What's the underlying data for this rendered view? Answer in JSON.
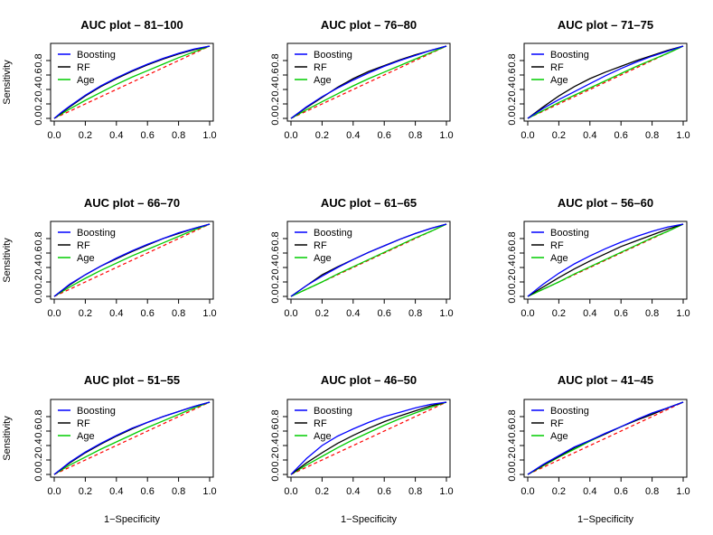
{
  "colors": {
    "boosting": "#0000ff",
    "rf": "#000000",
    "age": "#00cc00",
    "diagonal": "#ff0000"
  },
  "chart_data": [
    {
      "type": "line",
      "title": "AUC plot – 81–100",
      "xlabel": "",
      "ylabel": "Sensitivity",
      "xlim": [
        0,
        1
      ],
      "ylim": [
        0,
        1
      ],
      "xticks": [
        "0.0",
        "0.2",
        "0.4",
        "0.6",
        "0.8",
        "1.0"
      ],
      "yticks": [
        "0.0",
        "0.2",
        "0.4",
        "0.6",
        "0.8"
      ],
      "legend": "top-left",
      "diagonal": {
        "x": [
          0,
          1
        ],
        "y": [
          0,
          1
        ],
        "style": "dashed"
      },
      "series": [
        {
          "name": "Boosting",
          "x": [
            0,
            0.05,
            0.1,
            0.2,
            0.3,
            0.4,
            0.5,
            0.6,
            0.7,
            0.8,
            0.9,
            1.0
          ],
          "y": [
            0,
            0.09,
            0.17,
            0.32,
            0.45,
            0.56,
            0.66,
            0.75,
            0.83,
            0.9,
            0.96,
            1.0
          ]
        },
        {
          "name": "RF",
          "x": [
            0,
            0.05,
            0.1,
            0.2,
            0.3,
            0.4,
            0.5,
            0.6,
            0.7,
            0.8,
            0.9,
            1.0
          ],
          "y": [
            0,
            0.08,
            0.16,
            0.31,
            0.44,
            0.55,
            0.65,
            0.74,
            0.82,
            0.89,
            0.95,
            1.0
          ]
        },
        {
          "name": "Age",
          "x": [
            0,
            0.1,
            0.2,
            0.3,
            0.4,
            0.5,
            0.6,
            0.7,
            0.8,
            0.9,
            1.0
          ],
          "y": [
            0,
            0.13,
            0.25,
            0.36,
            0.47,
            0.57,
            0.66,
            0.75,
            0.84,
            0.92,
            1.0
          ]
        }
      ]
    },
    {
      "type": "line",
      "title": "AUC plot – 76–80",
      "xlabel": "",
      "ylabel": "",
      "xlim": [
        0,
        1
      ],
      "ylim": [
        0,
        1
      ],
      "xticks": [
        "0.0",
        "0.2",
        "0.4",
        "0.6",
        "0.8",
        "1.0"
      ],
      "yticks": [
        "0.0",
        "0.2",
        "0.4",
        "0.6",
        "0.8"
      ],
      "legend": "top-left",
      "diagonal": {
        "x": [
          0,
          1
        ],
        "y": [
          0,
          1
        ],
        "style": "dashed"
      },
      "series": [
        {
          "name": "Boosting",
          "x": [
            0,
            0.1,
            0.2,
            0.3,
            0.4,
            0.5,
            0.6,
            0.7,
            0.8,
            0.9,
            1.0
          ],
          "y": [
            0,
            0.16,
            0.3,
            0.42,
            0.53,
            0.63,
            0.72,
            0.8,
            0.87,
            0.94,
            1.0
          ]
        },
        {
          "name": "RF",
          "x": [
            0,
            0.1,
            0.2,
            0.3,
            0.4,
            0.5,
            0.6,
            0.7,
            0.8,
            0.9,
            1.0
          ],
          "y": [
            0,
            0.15,
            0.29,
            0.43,
            0.55,
            0.65,
            0.73,
            0.81,
            0.88,
            0.94,
            1.0
          ]
        },
        {
          "name": "Age",
          "x": [
            0,
            0.1,
            0.2,
            0.3,
            0.4,
            0.5,
            0.6,
            0.7,
            0.8,
            0.9,
            1.0
          ],
          "y": [
            0,
            0.12,
            0.23,
            0.34,
            0.45,
            0.55,
            0.64,
            0.73,
            0.82,
            0.91,
            1.0
          ]
        }
      ]
    },
    {
      "type": "line",
      "title": "AUC plot – 71–75",
      "xlabel": "",
      "ylabel": "",
      "xlim": [
        0,
        1
      ],
      "ylim": [
        0,
        1
      ],
      "xticks": [
        "0.0",
        "0.2",
        "0.4",
        "0.6",
        "0.8",
        "1.0"
      ],
      "yticks": [
        "0.0",
        "0.2",
        "0.4",
        "0.6",
        "0.8"
      ],
      "legend": "top-left",
      "diagonal": {
        "x": [
          0,
          1
        ],
        "y": [
          0,
          1
        ],
        "style": "dashed"
      },
      "series": [
        {
          "name": "Boosting",
          "x": [
            0,
            0.1,
            0.2,
            0.3,
            0.4,
            0.5,
            0.6,
            0.7,
            0.8,
            0.9,
            1.0
          ],
          "y": [
            0,
            0.14,
            0.26,
            0.37,
            0.48,
            0.59,
            0.69,
            0.78,
            0.86,
            0.93,
            1.0
          ]
        },
        {
          "name": "RF",
          "x": [
            0,
            0.1,
            0.2,
            0.3,
            0.4,
            0.5,
            0.6,
            0.7,
            0.8,
            0.9,
            1.0
          ],
          "y": [
            0,
            0.16,
            0.31,
            0.44,
            0.55,
            0.64,
            0.72,
            0.8,
            0.87,
            0.94,
            1.0
          ]
        },
        {
          "name": "Age",
          "x": [
            0,
            0.1,
            0.2,
            0.3,
            0.4,
            0.5,
            0.6,
            0.7,
            0.8,
            0.9,
            1.0
          ],
          "y": [
            0,
            0.11,
            0.22,
            0.32,
            0.42,
            0.52,
            0.62,
            0.72,
            0.81,
            0.9,
            1.0
          ]
        }
      ]
    },
    {
      "type": "line",
      "title": "AUC plot – 66–70",
      "xlabel": "",
      "ylabel": "Sensitivity",
      "xlim": [
        0,
        1
      ],
      "ylim": [
        0,
        1
      ],
      "xticks": [
        "0.0",
        "0.2",
        "0.4",
        "0.6",
        "0.8",
        "1.0"
      ],
      "yticks": [
        "0.0",
        "0.2",
        "0.4",
        "0.6",
        "0.8"
      ],
      "legend": "top-left",
      "diagonal": {
        "x": [
          0,
          1
        ],
        "y": [
          0,
          1
        ],
        "style": "dashed"
      },
      "series": [
        {
          "name": "Boosting",
          "x": [
            0,
            0.1,
            0.2,
            0.3,
            0.4,
            0.5,
            0.6,
            0.7,
            0.8,
            0.9,
            1.0
          ],
          "y": [
            0,
            0.17,
            0.3,
            0.42,
            0.53,
            0.63,
            0.72,
            0.8,
            0.88,
            0.94,
            1.0
          ]
        },
        {
          "name": "RF",
          "x": [
            0,
            0.1,
            0.2,
            0.3,
            0.4,
            0.5,
            0.6,
            0.7,
            0.8,
            0.9,
            1.0
          ],
          "y": [
            0,
            0.16,
            0.3,
            0.42,
            0.52,
            0.62,
            0.71,
            0.8,
            0.87,
            0.94,
            1.0
          ]
        },
        {
          "name": "Age",
          "x": [
            0,
            0.1,
            0.2,
            0.3,
            0.4,
            0.5,
            0.6,
            0.7,
            0.8,
            0.9,
            1.0
          ],
          "y": [
            0,
            0.13,
            0.25,
            0.36,
            0.46,
            0.56,
            0.65,
            0.74,
            0.83,
            0.92,
            1.0
          ]
        }
      ]
    },
    {
      "type": "line",
      "title": "AUC plot – 61–65",
      "xlabel": "",
      "ylabel": "",
      "xlim": [
        0,
        1
      ],
      "ylim": [
        0,
        1
      ],
      "xticks": [
        "0.0",
        "0.2",
        "0.4",
        "0.6",
        "0.8",
        "1.0"
      ],
      "yticks": [
        "0.0",
        "0.2",
        "0.4",
        "0.6",
        "0.8"
      ],
      "legend": "top-left",
      "diagonal": {
        "x": [
          0,
          1
        ],
        "y": [
          0,
          1
        ],
        "style": "dashed"
      },
      "series": [
        {
          "name": "Boosting",
          "x": [
            0,
            0.1,
            0.2,
            0.3,
            0.4,
            0.5,
            0.6,
            0.7,
            0.8,
            0.9,
            1.0
          ],
          "y": [
            0,
            0.15,
            0.28,
            0.4,
            0.51,
            0.61,
            0.7,
            0.79,
            0.87,
            0.94,
            1.0
          ]
        },
        {
          "name": "RF",
          "x": [
            0,
            0.1,
            0.2,
            0.3,
            0.4,
            0.5,
            0.6,
            0.7,
            0.8,
            0.9,
            1.0
          ],
          "y": [
            0,
            0.15,
            0.3,
            0.41,
            0.51,
            0.61,
            0.7,
            0.79,
            0.87,
            0.94,
            1.0
          ]
        },
        {
          "name": "Age",
          "x": [
            0,
            0.1,
            0.2,
            0.3,
            0.4,
            0.5,
            0.6,
            0.7,
            0.8,
            0.9,
            1.0
          ],
          "y": [
            0,
            0.1,
            0.2,
            0.31,
            0.41,
            0.51,
            0.61,
            0.71,
            0.81,
            0.9,
            1.0
          ]
        }
      ]
    },
    {
      "type": "line",
      "title": "AUC plot – 56–60",
      "xlabel": "",
      "ylabel": "",
      "xlim": [
        0,
        1
      ],
      "ylim": [
        0,
        1
      ],
      "xticks": [
        "0.0",
        "0.2",
        "0.4",
        "0.6",
        "0.8",
        "1.0"
      ],
      "yticks": [
        "0.0",
        "0.2",
        "0.4",
        "0.6",
        "0.8"
      ],
      "legend": "top-left",
      "diagonal": {
        "x": [
          0,
          1
        ],
        "y": [
          0,
          1
        ],
        "style": "dashed"
      },
      "series": [
        {
          "name": "Boosting",
          "x": [
            0,
            0.1,
            0.2,
            0.3,
            0.4,
            0.5,
            0.6,
            0.7,
            0.8,
            0.9,
            1.0
          ],
          "y": [
            0,
            0.17,
            0.32,
            0.45,
            0.56,
            0.66,
            0.75,
            0.83,
            0.9,
            0.96,
            1.0
          ]
        },
        {
          "name": "RF",
          "x": [
            0,
            0.1,
            0.2,
            0.3,
            0.4,
            0.5,
            0.6,
            0.7,
            0.8,
            0.9,
            1.0
          ],
          "y": [
            0,
            0.13,
            0.26,
            0.38,
            0.49,
            0.59,
            0.69,
            0.77,
            0.85,
            0.93,
            1.0
          ]
        },
        {
          "name": "Age",
          "x": [
            0,
            0.1,
            0.2,
            0.3,
            0.4,
            0.5,
            0.6,
            0.7,
            0.8,
            0.9,
            1.0
          ],
          "y": [
            0,
            0.1,
            0.2,
            0.31,
            0.41,
            0.51,
            0.61,
            0.71,
            0.81,
            0.9,
            1.0
          ]
        }
      ]
    },
    {
      "type": "line",
      "title": "AUC plot – 51–55",
      "xlabel": "1−Specificity",
      "ylabel": "Sensitivity",
      "xlim": [
        0,
        1
      ],
      "ylim": [
        0,
        1
      ],
      "xticks": [
        "0.0",
        "0.2",
        "0.4",
        "0.6",
        "0.8",
        "1.0"
      ],
      "yticks": [
        "0.0",
        "0.2",
        "0.4",
        "0.6",
        "0.8"
      ],
      "legend": "top-left",
      "diagonal": {
        "x": [
          0,
          1
        ],
        "y": [
          0,
          1
        ],
        "style": "dashed"
      },
      "series": [
        {
          "name": "Boosting",
          "x": [
            0,
            0.1,
            0.2,
            0.3,
            0.4,
            0.5,
            0.6,
            0.7,
            0.8,
            0.9,
            1.0
          ],
          "y": [
            0,
            0.17,
            0.31,
            0.43,
            0.54,
            0.64,
            0.72,
            0.8,
            0.87,
            0.94,
            1.0
          ]
        },
        {
          "name": "RF",
          "x": [
            0,
            0.1,
            0.2,
            0.3,
            0.4,
            0.5,
            0.6,
            0.7,
            0.8,
            0.9,
            1.0
          ],
          "y": [
            0,
            0.16,
            0.3,
            0.42,
            0.53,
            0.63,
            0.72,
            0.8,
            0.87,
            0.94,
            1.0
          ]
        },
        {
          "name": "Age",
          "x": [
            0,
            0.1,
            0.2,
            0.3,
            0.4,
            0.5,
            0.6,
            0.7,
            0.8,
            0.9,
            1.0
          ],
          "y": [
            0,
            0.13,
            0.24,
            0.35,
            0.45,
            0.55,
            0.65,
            0.74,
            0.83,
            0.92,
            1.0
          ]
        }
      ]
    },
    {
      "type": "line",
      "title": "AUC plot – 46–50",
      "xlabel": "1−Specificity",
      "ylabel": "",
      "xlim": [
        0,
        1
      ],
      "ylim": [
        0,
        1
      ],
      "xticks": [
        "0.0",
        "0.2",
        "0.4",
        "0.6",
        "0.8",
        "1.0"
      ],
      "yticks": [
        "0.0",
        "0.2",
        "0.4",
        "0.6",
        "0.8"
      ],
      "legend": "top-left",
      "diagonal": {
        "x": [
          0,
          1
        ],
        "y": [
          0,
          1
        ],
        "style": "dashed"
      },
      "series": [
        {
          "name": "Boosting",
          "x": [
            0,
            0.1,
            0.2,
            0.3,
            0.4,
            0.5,
            0.6,
            0.7,
            0.8,
            0.9,
            1.0
          ],
          "y": [
            0,
            0.22,
            0.4,
            0.53,
            0.63,
            0.72,
            0.8,
            0.86,
            0.92,
            0.97,
            1.0
          ]
        },
        {
          "name": "RF",
          "x": [
            0,
            0.1,
            0.2,
            0.3,
            0.4,
            0.5,
            0.6,
            0.7,
            0.8,
            0.9,
            1.0
          ],
          "y": [
            0,
            0.16,
            0.3,
            0.43,
            0.54,
            0.64,
            0.73,
            0.81,
            0.88,
            0.95,
            1.0
          ]
        },
        {
          "name": "Age",
          "x": [
            0,
            0.1,
            0.2,
            0.3,
            0.4,
            0.5,
            0.6,
            0.7,
            0.8,
            0.9,
            1.0
          ],
          "y": [
            0,
            0.13,
            0.25,
            0.37,
            0.48,
            0.58,
            0.68,
            0.77,
            0.85,
            0.93,
            1.0
          ]
        }
      ]
    },
    {
      "type": "line",
      "title": "AUC plot – 41–45",
      "xlabel": "1−Specificity",
      "ylabel": "",
      "xlim": [
        0,
        1
      ],
      "ylim": [
        0,
        1
      ],
      "xticks": [
        "0.0",
        "0.2",
        "0.4",
        "0.6",
        "0.8",
        "1.0"
      ],
      "yticks": [
        "0.0",
        "0.2",
        "0.4",
        "0.6",
        "0.8"
      ],
      "legend": "top-left",
      "diagonal": {
        "x": [
          0,
          1
        ],
        "y": [
          0,
          1
        ],
        "style": "dashed"
      },
      "series": [
        {
          "name": "Boosting",
          "x": [
            0,
            0.1,
            0.2,
            0.3,
            0.4,
            0.5,
            0.6,
            0.7,
            0.8,
            0.9,
            1.0
          ],
          "y": [
            0,
            0.14,
            0.26,
            0.38,
            0.47,
            0.57,
            0.66,
            0.76,
            0.85,
            0.92,
            1.0
          ]
        },
        {
          "name": "RF",
          "x": [
            0,
            0.1,
            0.2,
            0.3,
            0.4,
            0.5,
            0.6,
            0.7,
            0.8,
            0.9,
            1.0
          ],
          "y": [
            0,
            0.13,
            0.25,
            0.37,
            0.47,
            0.56,
            0.66,
            0.75,
            0.83,
            0.92,
            1.0
          ]
        },
        {
          "name": "Age",
          "x": [
            0,
            0.1,
            0.2,
            0.3,
            0.4,
            0.5,
            0.6,
            0.7,
            0.8,
            0.9,
            1.0
          ],
          "y": [
            0,
            0.12,
            0.24,
            0.35,
            0.46,
            0.56,
            0.66,
            0.75,
            0.84,
            0.92,
            1.0
          ]
        }
      ]
    }
  ]
}
